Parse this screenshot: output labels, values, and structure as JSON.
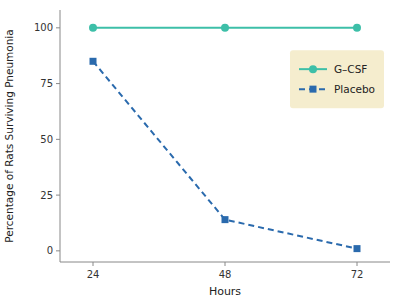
{
  "chart_data": {
    "type": "line",
    "xlabel": "Hours",
    "ylabel": "Percentage of Rats Surviving Pneumonia",
    "x": [
      24,
      48,
      72
    ],
    "series": [
      {
        "name": "G–CSF",
        "color": "#3dbfa8",
        "values": [
          100,
          100,
          100
        ],
        "marker": "circle",
        "line_style": "solid"
      },
      {
        "name": "Placebo",
        "color": "#2a6aad",
        "values": [
          85,
          14,
          1
        ],
        "marker": "square",
        "line_style": "dashed"
      }
    ],
    "xlim": [
      18,
      78
    ],
    "ylim": [
      -5,
      108
    ],
    "xticks": [
      24,
      48,
      72
    ],
    "yticks": [
      0,
      25,
      50,
      75,
      100
    ],
    "grid": false,
    "legend": "upper right"
  }
}
